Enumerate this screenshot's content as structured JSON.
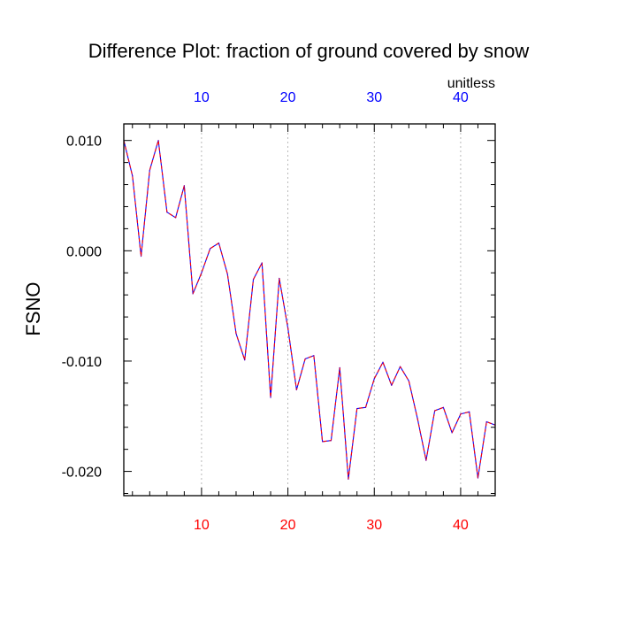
{
  "chart_data": {
    "type": "line",
    "title": "Difference Plot: fraction of ground covered by snow",
    "ylabel": "FSNO",
    "units_label": "unitless",
    "xlim": [
      1,
      44
    ],
    "ylim": [
      -0.0222,
      0.0115
    ],
    "x_ticks_bottom": [
      10,
      20,
      30,
      40
    ],
    "x_ticks_top": [
      10,
      20,
      30,
      40
    ],
    "y_ticks": [
      {
        "value": 0.01,
        "label": "0.010"
      },
      {
        "value": 0.0,
        "label": "0.000"
      },
      {
        "value": -0.01,
        "label": "-0.010"
      },
      {
        "value": -0.02,
        "label": "-0.020"
      }
    ],
    "grid": "vertical dotted at major x ticks",
    "colors": {
      "bottom_tick_labels": "#ff0000",
      "top_tick_labels": "#0000ff",
      "line_primary": "#0000ff",
      "line_overlay": "#ff0000",
      "grid": "#aaaaaa"
    },
    "series": [
      {
        "x": [
          1,
          2,
          3,
          4,
          5,
          6,
          7,
          8,
          9,
          10,
          11,
          12,
          13,
          14,
          15,
          16,
          17,
          18,
          19,
          20,
          21,
          22,
          23,
          24,
          25,
          26,
          27,
          28,
          29,
          30,
          31,
          32,
          33,
          34,
          35,
          36,
          37,
          38,
          39,
          40,
          41,
          42,
          43,
          44
        ],
        "values": [
          0.01,
          0.0068,
          -0.0005,
          0.0073,
          0.01,
          0.0035,
          0.003,
          0.0059,
          -0.0039,
          -0.002,
          0.0002,
          0.0007,
          -0.0021,
          -0.0075,
          -0.0099,
          -0.0026,
          -0.0011,
          -0.0133,
          -0.0025,
          -0.007,
          -0.0126,
          -0.0098,
          -0.0095,
          -0.0173,
          -0.0172,
          -0.0106,
          -0.0207,
          -0.0143,
          -0.0142,
          -0.0116,
          -0.0101,
          -0.0122,
          -0.0105,
          -0.0118,
          -0.0152,
          -0.019,
          -0.0145,
          -0.0142,
          -0.0165,
          -0.0148,
          -0.0146,
          -0.0206,
          -0.0155,
          -0.0158
        ]
      }
    ]
  }
}
